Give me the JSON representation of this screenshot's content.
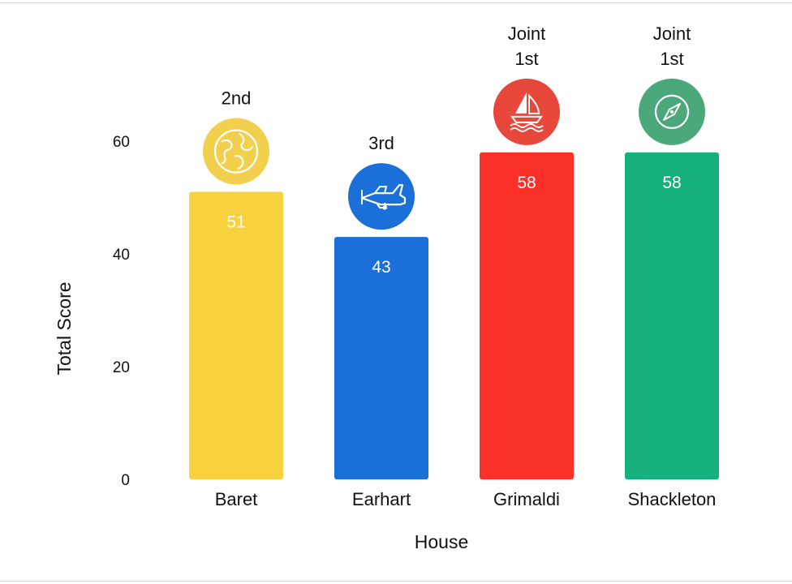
{
  "chart_data": {
    "type": "bar",
    "title": "",
    "xlabel": "House",
    "ylabel": "Total Score",
    "ylim": [
      0,
      65
    ],
    "yticks": [
      0,
      20,
      40,
      60
    ],
    "grid": false,
    "categories": [
      "Baret",
      "Earhart",
      "Grimaldi",
      "Shackleton"
    ],
    "values": [
      51,
      43,
      58,
      58
    ],
    "data_labels": [
      "51",
      "43",
      "58",
      "58"
    ],
    "ranks": [
      [
        "2nd"
      ],
      [
        "3rd"
      ],
      [
        "Joint",
        "1st"
      ],
      [
        "Joint",
        "1st"
      ]
    ],
    "colors": [
      "#f7d23e",
      "#1a6fd8",
      "#fb3129",
      "#15b07b"
    ],
    "badge_colors": [
      "#f2d04e",
      "#1a6fd8",
      "#e8473b",
      "#4aa87a"
    ],
    "icons": [
      "globe-icon",
      "airplane-icon",
      "sailboat-icon",
      "compass-icon"
    ]
  }
}
